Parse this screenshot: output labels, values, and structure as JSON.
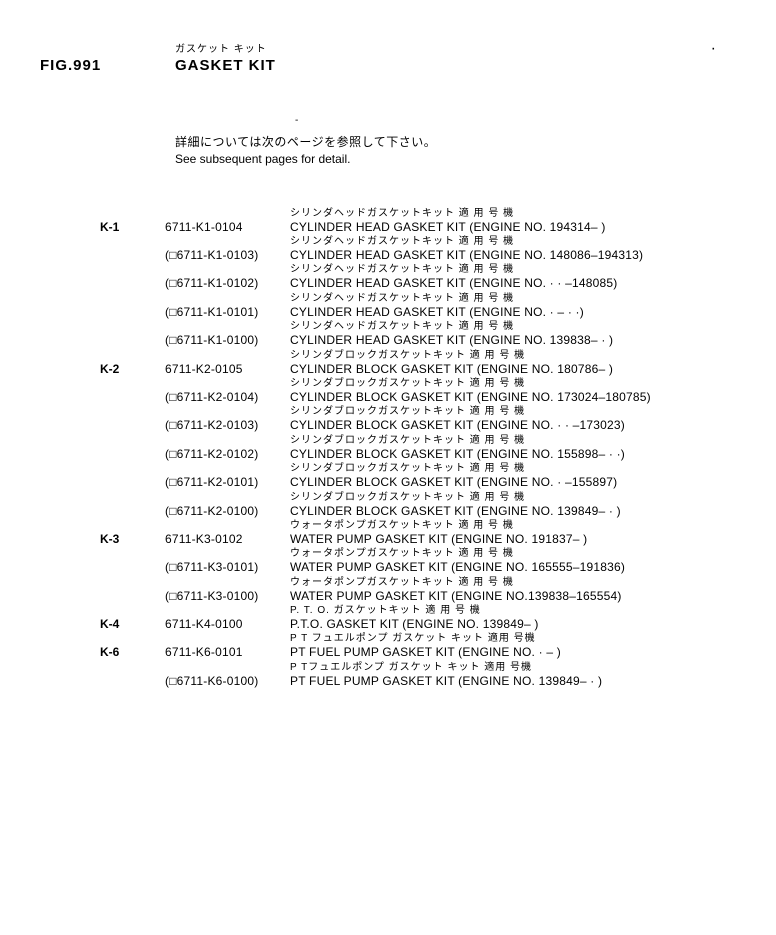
{
  "header": {
    "fig_label": "FIG.991",
    "title_jp": "ガスケット  キット",
    "title_en": "GASKET KIT"
  },
  "note": {
    "jp": "詳細については次のページを参照して下さい。",
    "en": "See subsequent pages for detail."
  },
  "rows": [
    {
      "key": "K-1",
      "partno": "6711-K1-0104",
      "jp": "シリンダヘッドガスケットキット  適 用  号 機",
      "en": "CYLINDER HEAD GASKET KIT (ENGINE NO. 194314– )"
    },
    {
      "key": "",
      "partno": "(□6711-K1-0103)",
      "jp": "シリンダヘッドガスケットキット  適 用  号 機",
      "en": "CYLINDER HEAD GASKET KIT (ENGINE NO. 148086–194313)"
    },
    {
      "key": "",
      "partno": "(□6711-K1-0102)",
      "jp": "シリンダヘッドガスケットキット  適 用  号 機",
      "en": "CYLINDER HEAD GASKET KIT (ENGINE NO. · · –148085)"
    },
    {
      "key": "",
      "partno": "(□6711-K1-0101)",
      "jp": "シリンダヘッドガスケットキット  適 用  号 機",
      "en": "CYLINDER HEAD GASKET KIT (ENGINE NO.  ·  – · ·)"
    },
    {
      "key": "",
      "partno": "(□6711-K1-0100)",
      "jp": "シリンダヘッドガスケットキット  適 用  号 機",
      "en": "CYLINDER HEAD GASKET KIT (ENGINE NO. 139838– · )"
    },
    {
      "key": "K-2",
      "partno": "6711-K2-0105",
      "jp": "シリンダブロックガスケットキット 適 用  号 機",
      "en": "CYLINDER BLOCK GASKET KIT (ENGINE NO. 180786– )"
    },
    {
      "key": "",
      "partno": "(□6711-K2-0104)",
      "jp": "シリンダブロックガスケットキット 適 用  号 機",
      "en": "CYLINDER BLOCK GASKET KIT (ENGINE NO. 173024–180785)"
    },
    {
      "key": "",
      "partno": "(□6711-K2-0103)",
      "jp": "シリンダブロックガスケットキット 適 用  号 機",
      "en": "CYLINDER BLOCK GASKET KIT (ENGINE NO. · · –173023)"
    },
    {
      "key": "",
      "partno": "(□6711-K2-0102)",
      "jp": "シリンダブロックガスケットキット 適 用  号 機",
      "en": "CYLINDER BLOCK GASKET KIT (ENGINE NO. 155898– · ·)"
    },
    {
      "key": "",
      "partno": "(□6711-K2-0101)",
      "jp": "シリンダブロックガスケットキット 適 用  号 機",
      "en": "CYLINDER BLOCK GASKET KIT (ENGINE NO.  ·  –155897)"
    },
    {
      "key": "",
      "partno": "(□6711-K2-0100)",
      "jp": "シリンダブロックガスケットキット 適 用  号 機",
      "en": "CYLINDER BLOCK GASKET KIT (ENGINE NO. 139849– · )"
    },
    {
      "key": "K-3",
      "partno": "6711-K3-0102",
      "jp": "ウォータポンプガスケットキット 適 用  号 機",
      "en": "WATER PUMP GASKET KIT (ENGINE NO. 191837– )"
    },
    {
      "key": "",
      "partno": "(□6711-K3-0101)",
      "jp": "ウォータポンプガスケットキット 適 用  号 機",
      "en": "WATER PUMP GASKET KIT (ENGINE NO. 165555–191836)"
    },
    {
      "key": "",
      "partno": "(□6711-K3-0100)",
      "jp": "ウォータポンプガスケットキット 適 用  号 機",
      "en": "WATER PUMP GASKET KIT (ENGINE NO.139838–165554)"
    },
    {
      "key": "K-4",
      "partno": "6711-K4-0100",
      "jp": "P. T. O. ガスケットキット  適 用  号 機",
      "en": "P.T.O. GASKET KIT (ENGINE NO. 139849– )"
    },
    {
      "key": "K-6",
      "partno": "6711-K6-0101",
      "jp": "P T フュエルポンプ ガスケット キット  適用  号機",
      "en": "PT FUEL PUMP GASKET KIT (ENGINE NO.  · – )"
    },
    {
      "key": "",
      "partno": "(□6711-K6-0100)",
      "jp": "P Tフュエルポンプ ガスケット キット  適用  号機",
      "en": "PT FUEL PUMP GASKET KIT (ENGINE NO. 139849–  · )"
    }
  ],
  "style": {
    "bg": "#ffffff",
    "fg": "#000000",
    "body_fontsize": 12,
    "jp_fontsize": 10,
    "title_fontsize": 15
  }
}
